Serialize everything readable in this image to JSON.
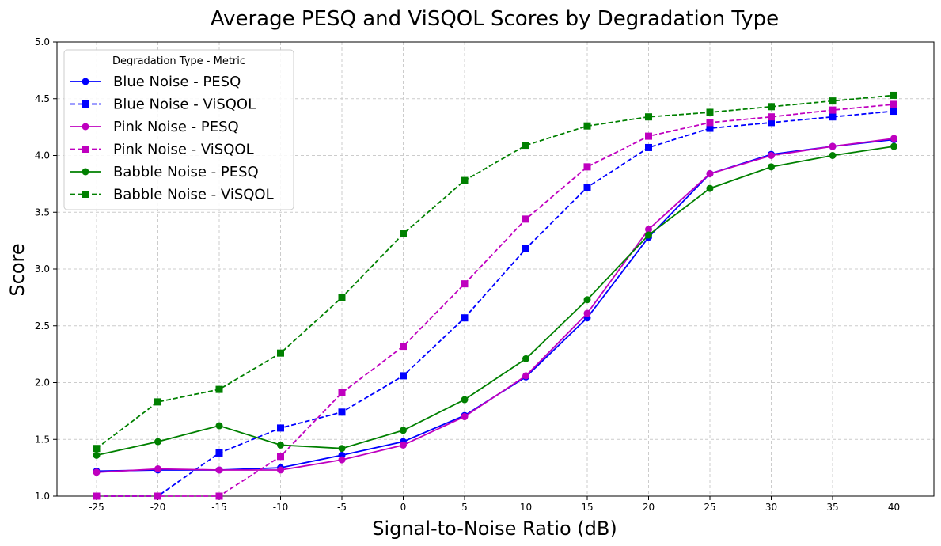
{
  "chart_data": {
    "type": "line",
    "title": "Average PESQ and ViSQOL Scores by Degradation Type",
    "xlabel": "Signal-to-Noise Ratio (dB)",
    "ylabel": "Score",
    "ylim": [
      1.0,
      5.0
    ],
    "yticks": [
      "1.0",
      "1.5",
      "2.0",
      "2.5",
      "3.0",
      "3.5",
      "4.0",
      "4.5",
      "5.0"
    ],
    "categories": [
      "-25",
      "-20",
      "-15",
      "-10",
      "-5",
      "0",
      "5",
      "10",
      "15",
      "20",
      "25",
      "30",
      "35",
      "40"
    ],
    "grid": true,
    "legend": {
      "title": "Degradation Type - Metric",
      "placement": "top-left"
    },
    "series": [
      {
        "name": "Blue Noise - PESQ",
        "color": "#0000ff",
        "style": "solid",
        "marker": "circle",
        "values": [
          1.22,
          1.23,
          1.23,
          1.25,
          1.36,
          1.48,
          1.71,
          2.05,
          2.57,
          3.28,
          3.84,
          4.01,
          4.08,
          4.14
        ]
      },
      {
        "name": "Blue Noise - ViSQOL",
        "color": "#0000ff",
        "style": "dashed",
        "marker": "square",
        "values": [
          1.0,
          1.0,
          1.38,
          1.6,
          1.74,
          2.06,
          2.57,
          3.18,
          3.72,
          4.07,
          4.24,
          4.29,
          4.34,
          4.39
        ]
      },
      {
        "name": "Pink Noise - PESQ",
        "color": "#bf00bf",
        "style": "solid",
        "marker": "circle",
        "values": [
          1.21,
          1.24,
          1.23,
          1.23,
          1.32,
          1.45,
          1.7,
          2.06,
          2.61,
          3.35,
          3.84,
          4.0,
          4.08,
          4.15
        ]
      },
      {
        "name": "Pink Noise - ViSQOL",
        "color": "#bf00bf",
        "style": "dashed",
        "marker": "square",
        "values": [
          1.0,
          1.0,
          1.0,
          1.35,
          1.91,
          2.32,
          2.87,
          3.44,
          3.9,
          4.17,
          4.29,
          4.34,
          4.4,
          4.45
        ]
      },
      {
        "name": "Babble Noise - PESQ",
        "color": "#008000",
        "style": "solid",
        "marker": "circle",
        "values": [
          1.36,
          1.48,
          1.62,
          1.45,
          1.42,
          1.58,
          1.85,
          2.21,
          2.73,
          3.3,
          3.71,
          3.9,
          4.0,
          4.08
        ]
      },
      {
        "name": "Babble Noise - ViSQOL",
        "color": "#008000",
        "style": "dashed",
        "marker": "square",
        "values": [
          1.42,
          1.83,
          1.94,
          2.26,
          2.75,
          3.31,
          3.78,
          4.09,
          4.26,
          4.34,
          4.38,
          4.43,
          4.48,
          4.53
        ]
      }
    ]
  }
}
